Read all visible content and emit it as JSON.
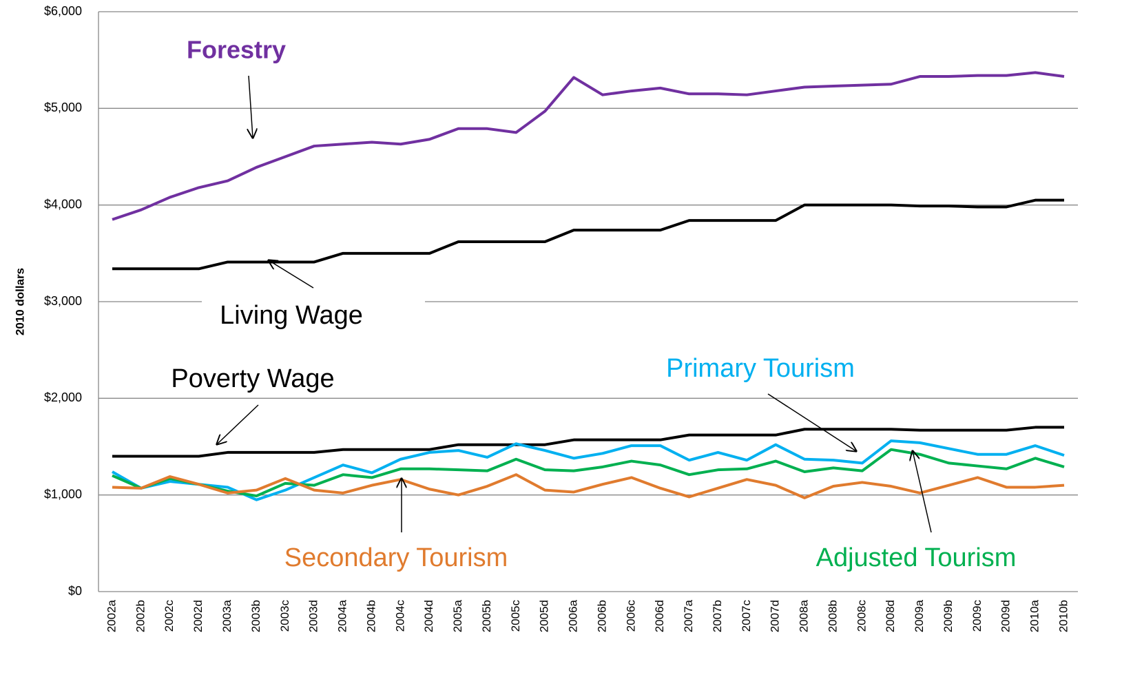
{
  "chart_data": {
    "type": "line",
    "y_label": "2010 dollars",
    "categories": [
      "2002a",
      "2002b",
      "2002c",
      "2002d",
      "2003a",
      "2003b",
      "2003c",
      "2003d",
      "2004a",
      "2004b",
      "2004c",
      "2004d",
      "2005a",
      "2005b",
      "2005c",
      "2005d",
      "2006a",
      "2006b",
      "2006c",
      "2006d",
      "2007a",
      "2007b",
      "2007c",
      "2007d",
      "2008a",
      "2008b",
      "2008c",
      "2008d",
      "2009a",
      "2009b",
      "2009c",
      "2009d",
      "2010a",
      "2010b"
    ],
    "series": [
      {
        "name": "Forestry",
        "color": "#7030a0",
        "values": [
          3850,
          3950,
          4080,
          4180,
          4250,
          4390,
          4500,
          4610,
          4630,
          4650,
          4630,
          4680,
          4790,
          4790,
          4750,
          4970,
          5320,
          5140,
          5180,
          5210,
          5150,
          5150,
          5140,
          5180,
          5220,
          5230,
          5240,
          5250,
          5330,
          5330,
          5340,
          5340,
          5370,
          5330
        ]
      },
      {
        "name": "Living Wage",
        "color": "#000000",
        "values": [
          3340,
          3340,
          3340,
          3340,
          3410,
          3410,
          3410,
          3410,
          3500,
          3500,
          3500,
          3500,
          3620,
          3620,
          3620,
          3620,
          3740,
          3740,
          3740,
          3740,
          3840,
          3840,
          3840,
          3840,
          4000,
          4000,
          4000,
          4000,
          3990,
          3990,
          3980,
          3980,
          4050,
          4050
        ]
      },
      {
        "name": "Poverty Wage",
        "color": "#000000",
        "values": [
          1400,
          1400,
          1400,
          1400,
          1440,
          1440,
          1440,
          1440,
          1470,
          1470,
          1470,
          1470,
          1520,
          1520,
          1520,
          1520,
          1570,
          1570,
          1570,
          1570,
          1620,
          1620,
          1620,
          1620,
          1680,
          1680,
          1680,
          1680,
          1670,
          1670,
          1670,
          1670,
          1700,
          1700
        ]
      },
      {
        "name": "Primary Tourism",
        "color": "#00b0f0",
        "values": [
          1240,
          1070,
          1140,
          1110,
          1080,
          950,
          1050,
          1180,
          1310,
          1230,
          1370,
          1440,
          1460,
          1390,
          1530,
          1460,
          1380,
          1430,
          1510,
          1510,
          1360,
          1440,
          1360,
          1520,
          1370,
          1360,
          1330,
          1560,
          1540,
          1480,
          1420,
          1420,
          1510,
          1410
        ]
      },
      {
        "name": "Adjusted Tourism",
        "color": "#00b050",
        "values": [
          1200,
          1070,
          1170,
          1110,
          1040,
          990,
          1120,
          1100,
          1210,
          1180,
          1270,
          1270,
          1260,
          1250,
          1370,
          1260,
          1250,
          1290,
          1350,
          1310,
          1210,
          1260,
          1270,
          1350,
          1240,
          1280,
          1250,
          1470,
          1420,
          1330,
          1300,
          1270,
          1380,
          1290
        ]
      },
      {
        "name": "Secondary Tourism",
        "color": "#e07b2e",
        "values": [
          1080,
          1070,
          1190,
          1110,
          1020,
          1050,
          1170,
          1050,
          1020,
          1100,
          1160,
          1060,
          1000,
          1090,
          1210,
          1050,
          1030,
          1110,
          1180,
          1070,
          980,
          1070,
          1160,
          1100,
          970,
          1090,
          1130,
          1090,
          1020,
          1100,
          1180,
          1080,
          1080,
          1100
        ]
      }
    ],
    "ylim": [
      0,
      6000
    ],
    "yticks": [
      {
        "value": 0,
        "label": "$0"
      },
      {
        "value": 1000,
        "label": "$1,000"
      },
      {
        "value": 2000,
        "label": "$2,000"
      },
      {
        "value": 3000,
        "label": "$3,000"
      },
      {
        "value": 4000,
        "label": "$4,000"
      },
      {
        "value": 5000,
        "label": "$5,000"
      },
      {
        "value": 6000,
        "label": "$6,000"
      }
    ],
    "grid": true
  }
}
